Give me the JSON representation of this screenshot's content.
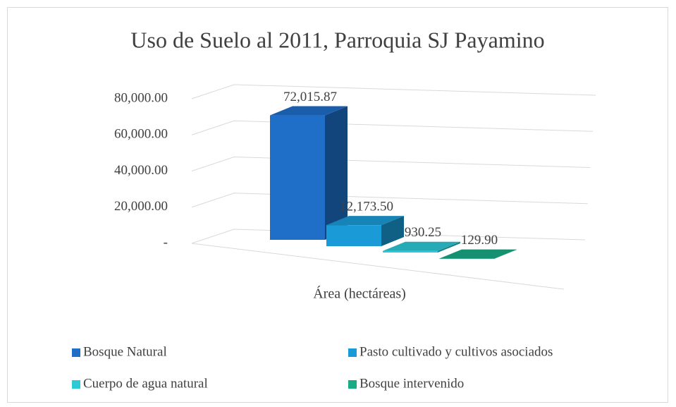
{
  "chart_data": {
    "type": "bar3d",
    "title": "Uso de Suelo al 2011, Parroquia SJ Payamino",
    "categories": [
      "Área (hectáreas)"
    ],
    "series": [
      {
        "name": "Bosque Natural",
        "color": "#1f6fc9",
        "values": [
          72015.87
        ],
        "value_labels": [
          "72,015.87"
        ]
      },
      {
        "name": "Pasto cultivado y cultivos asociados",
        "color": "#1a9bd7",
        "values": [
          12173.5
        ],
        "value_labels": [
          "12,173.50"
        ]
      },
      {
        "name": "Cuerpo de agua natural",
        "color": "#2dc9d6",
        "values": [
          930.25
        ],
        "value_labels": [
          "930.25"
        ]
      },
      {
        "name": "Bosque intervenido",
        "color": "#19aa86",
        "values": [
          129.9
        ],
        "value_labels": [
          "129.90"
        ]
      }
    ],
    "ylim": [
      0,
      80000
    ],
    "yticks": [
      {
        "value": 0,
        "label": "-"
      },
      {
        "value": 20000,
        "label": "20,000.00"
      },
      {
        "value": 40000,
        "label": "40,000.00"
      },
      {
        "value": 60000,
        "label": "60,000.00"
      },
      {
        "value": 80000,
        "label": "80,000.00"
      }
    ],
    "grid": true,
    "legend": "bottom"
  }
}
